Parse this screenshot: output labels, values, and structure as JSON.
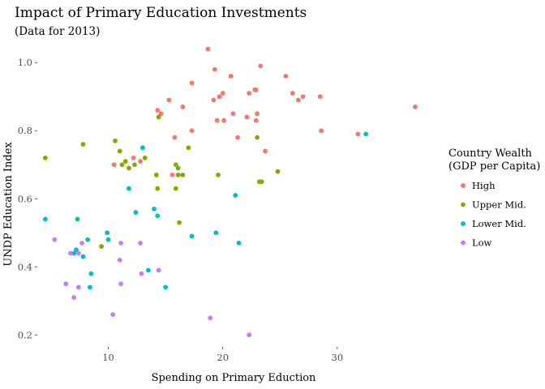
{
  "chart_data": {
    "type": "scatter",
    "title": "Impact of Primary Education Investments",
    "subtitle": "(Data for 2013)",
    "xlabel": "Spending on Primary Eduction",
    "ylabel": "UNDP Education Index",
    "xlim": [
      3.8,
      37.8
    ],
    "ylim": [
      0.165,
      1.06
    ],
    "x_ticks": [
      10,
      20,
      30
    ],
    "y_ticks": [
      0.2,
      0.4,
      0.6,
      0.8,
      1.0
    ],
    "y_tick_labels": [
      "0.2",
      "0.4",
      "0.6",
      "0.8",
      "1.0"
    ],
    "grid": false,
    "legend": {
      "position": "right",
      "title_line1": "Country Wealth",
      "title_line2": "(GDP per Capita)"
    },
    "series": [
      {
        "name": "High",
        "color": "#F8766D",
        "points": [
          [
            18.7,
            1.04
          ],
          [
            19.3,
            0.98
          ],
          [
            20.7,
            0.96
          ],
          [
            23.3,
            0.99
          ],
          [
            25.5,
            0.96
          ],
          [
            17.3,
            0.94
          ],
          [
            22.3,
            0.91
          ],
          [
            22.8,
            0.92
          ],
          [
            22.9,
            0.92
          ],
          [
            26.1,
            0.91
          ],
          [
            27.0,
            0.9
          ],
          [
            26.6,
            0.89
          ],
          [
            28.5,
            0.9
          ],
          [
            20.0,
            0.91
          ],
          [
            19.7,
            0.9
          ],
          [
            19.2,
            0.89
          ],
          [
            15.3,
            0.89
          ],
          [
            14.3,
            0.86
          ],
          [
            14.6,
            0.85
          ],
          [
            16.5,
            0.87
          ],
          [
            19.5,
            0.83
          ],
          [
            20.1,
            0.83
          ],
          [
            20.9,
            0.85
          ],
          [
            22.1,
            0.84
          ],
          [
            23.0,
            0.85
          ],
          [
            22.9,
            0.83
          ],
          [
            17.3,
            0.8
          ],
          [
            15.8,
            0.78
          ],
          [
            21.3,
            0.78
          ],
          [
            23.7,
            0.74
          ],
          [
            28.6,
            0.8
          ],
          [
            31.8,
            0.79
          ],
          [
            36.8,
            0.87
          ],
          [
            10.5,
            0.7
          ],
          [
            12.2,
            0.72
          ],
          [
            12.8,
            0.71
          ],
          [
            15.6,
            0.67
          ]
        ]
      },
      {
        "name": "Upper Mid.",
        "color": "#7CAE00",
        "points": [
          [
            4.5,
            0.72
          ],
          [
            7.8,
            0.76
          ],
          [
            10.6,
            0.77
          ],
          [
            11.0,
            0.74
          ],
          [
            13.2,
            0.72
          ],
          [
            11.2,
            0.7
          ],
          [
            11.5,
            0.71
          ],
          [
            11.8,
            0.69
          ],
          [
            12.3,
            0.7
          ],
          [
            14.4,
            0.84
          ],
          [
            17.0,
            0.75
          ],
          [
            15.9,
            0.7
          ],
          [
            16.1,
            0.69
          ],
          [
            14.2,
            0.67
          ],
          [
            16.1,
            0.67
          ],
          [
            16.5,
            0.67
          ],
          [
            19.6,
            0.67
          ],
          [
            14.3,
            0.63
          ],
          [
            15.9,
            0.63
          ],
          [
            23.0,
            0.78
          ],
          [
            23.2,
            0.65
          ],
          [
            23.4,
            0.65
          ],
          [
            24.8,
            0.68
          ],
          [
            16.2,
            0.53
          ],
          [
            9.4,
            0.46
          ]
        ]
      },
      {
        "name": "Lower Mid.",
        "color": "#00BFC4",
        "points": [
          [
            4.5,
            0.54
          ],
          [
            7.3,
            0.54
          ],
          [
            13.0,
            0.75
          ],
          [
            11.8,
            0.63
          ],
          [
            12.4,
            0.56
          ],
          [
            14.0,
            0.57
          ],
          [
            14.3,
            0.55
          ],
          [
            21.1,
            0.61
          ],
          [
            32.5,
            0.79
          ],
          [
            17.3,
            0.49
          ],
          [
            19.4,
            0.5
          ],
          [
            21.4,
            0.47
          ],
          [
            9.9,
            0.5
          ],
          [
            10.0,
            0.48
          ],
          [
            8.2,
            0.48
          ],
          [
            7.2,
            0.45
          ],
          [
            7.0,
            0.44
          ],
          [
            7.8,
            0.43
          ],
          [
            8.5,
            0.38
          ],
          [
            8.4,
            0.34
          ],
          [
            13.5,
            0.39
          ],
          [
            15.0,
            0.34
          ]
        ]
      },
      {
        "name": "Low",
        "color": "#C77CFF",
        "points": [
          [
            5.3,
            0.48
          ],
          [
            6.7,
            0.44
          ],
          [
            7.4,
            0.44
          ],
          [
            7.7,
            0.47
          ],
          [
            11.1,
            0.47
          ],
          [
            11.0,
            0.42
          ],
          [
            12.8,
            0.47
          ],
          [
            6.3,
            0.35
          ],
          [
            7.4,
            0.34
          ],
          [
            11.1,
            0.35
          ],
          [
            12.9,
            0.38
          ],
          [
            14.4,
            0.39
          ],
          [
            7.0,
            0.31
          ],
          [
            10.4,
            0.26
          ],
          [
            18.9,
            0.25
          ],
          [
            22.3,
            0.2
          ]
        ]
      }
    ]
  }
}
